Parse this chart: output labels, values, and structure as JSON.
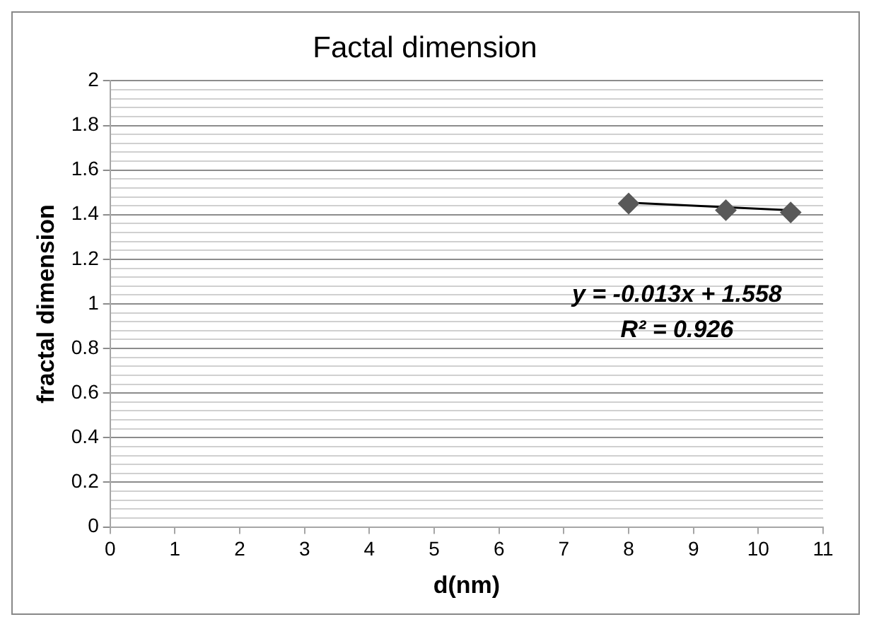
{
  "chart_data": {
    "type": "scatter",
    "title": "Factal dimension",
    "xlabel": "d(nm)",
    "ylabel": "fractal dimension",
    "x": [
      8,
      9.5,
      10.5
    ],
    "series": [
      {
        "color": "#595959",
        "values": [
          1.45,
          1.42,
          1.41
        ],
        "marker": "diamond"
      },
      {
        "type": "line",
        "color": "#000000",
        "x": [
          8,
          10.5
        ],
        "values": [
          1.454,
          1.42
        ],
        "marker": "none"
      }
    ],
    "xlim": [
      0,
      11
    ],
    "xticks": [
      0,
      1,
      2,
      3,
      4,
      5,
      6,
      7,
      8,
      9,
      10,
      11
    ],
    "ylim": [
      0,
      2
    ],
    "yticks": [
      0,
      {
        "value": 0.04,
        "label": null
      },
      {
        "value": 0.08,
        "label": null
      },
      {
        "value": 0.12,
        "label": null
      },
      {
        "value": 0.16,
        "label": null
      },
      0.2,
      {
        "value": 0.24,
        "label": null
      },
      {
        "value": 0.28,
        "label": null
      },
      {
        "value": 0.32,
        "label": null
      },
      {
        "value": 0.36,
        "label": null
      },
      0.4,
      {
        "value": 0.44,
        "label": null
      },
      {
        "value": 0.48,
        "label": null
      },
      {
        "value": 0.52,
        "label": null
      },
      {
        "value": 0.56,
        "label": null
      },
      0.6,
      {
        "value": 0.64,
        "label": null
      },
      {
        "value": 0.68,
        "label": null
      },
      {
        "value": 0.72,
        "label": null
      },
      {
        "value": 0.76,
        "label": null
      },
      0.8,
      {
        "value": 0.84,
        "label": null
      },
      {
        "value": 0.88,
        "label": null
      },
      {
        "value": 0.92,
        "label": null
      },
      {
        "value": 0.96,
        "label": null
      },
      1,
      {
        "value": 1.04,
        "label": null
      },
      {
        "value": 1.08,
        "label": null
      },
      {
        "value": 1.12,
        "label": null
      },
      {
        "value": 1.16,
        "label": null
      },
      1.2,
      {
        "value": 1.24,
        "label": null
      },
      {
        "value": 1.28,
        "label": null
      },
      {
        "value": 1.32,
        "label": null
      },
      {
        "value": 1.36,
        "label": null
      },
      1.4,
      {
        "value": 1.44,
        "label": null
      },
      {
        "value": 1.48,
        "label": null
      },
      {
        "value": 1.52,
        "label": null
      },
      {
        "value": 1.56,
        "label": null
      },
      1.6,
      {
        "value": 1.64,
        "label": null
      },
      {
        "value": 1.68,
        "label": null
      },
      {
        "value": 1.72,
        "label": null
      },
      {
        "value": 1.76,
        "label": null
      },
      1.8,
      {
        "value": 1.84,
        "label": null
      },
      {
        "value": 1.88,
        "label": null
      },
      {
        "value": 1.92,
        "label": null
      },
      {
        "value": 1.96,
        "label": null
      },
      2
    ],
    "grid": "y",
    "legend": false,
    "annotations": [
      "y = -0.013x + 1.558",
      "R² = 0.926"
    ]
  }
}
